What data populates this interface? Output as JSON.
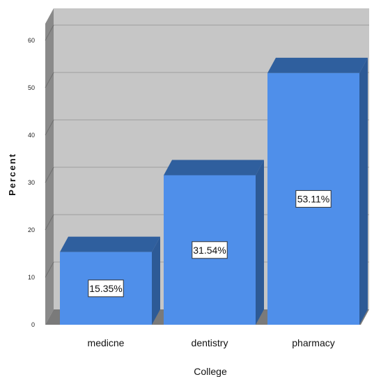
{
  "chart_data": {
    "type": "bar",
    "categories": [
      "medicne",
      "dentistry",
      "pharmacy"
    ],
    "values": [
      15.35,
      31.54,
      53.11
    ],
    "data_labels": [
      "15.35%",
      "31.54%",
      "53.11%"
    ],
    "xlabel": "College",
    "ylabel": "Percent",
    "ylim": [
      0,
      60
    ],
    "yticks": [
      "0",
      "10",
      "20",
      "30",
      "40",
      "50",
      "60"
    ],
    "grid": true,
    "style": "3d",
    "colors": {
      "bar_front": "#4f8fea",
      "bar_top": "#2f5f9e",
      "bar_side": "#2d5a96",
      "plot_background": "#c6c6c6",
      "plot_left_wall": "#8a8a8a",
      "floor": "#7a7a7a",
      "grid": "#9e9e9e"
    }
  }
}
